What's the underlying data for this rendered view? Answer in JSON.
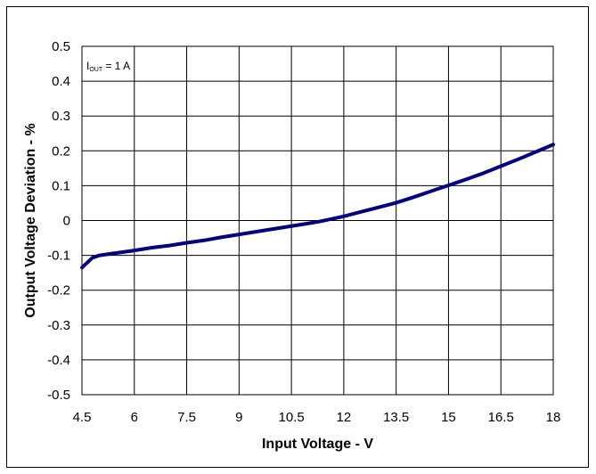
{
  "chart_data": {
    "type": "line",
    "title": "",
    "xlabel": "Input Voltage - V",
    "ylabel": "Output Voltage Deviation - %",
    "xlim": [
      4.5,
      18
    ],
    "ylim": [
      -0.5,
      0.5
    ],
    "x_ticks": [
      4.5,
      6,
      7.5,
      9,
      10.5,
      12,
      13.5,
      15,
      16.5,
      18
    ],
    "x_tick_labels": [
      "4.5",
      "6",
      "7.5",
      "9",
      "10.5",
      "12",
      "13.5",
      "15",
      "16.5",
      "18"
    ],
    "y_ticks": [
      0.5,
      0.4,
      0.3,
      0.2,
      0.1,
      0,
      -0.1,
      -0.2,
      -0.3,
      -0.4,
      -0.5
    ],
    "y_tick_labels": [
      "0.5",
      "0.4",
      "0.3",
      "0.2",
      "0.1",
      "0",
      "-0.1",
      "-0.2",
      "-0.3",
      "-0.4",
      "-0.5"
    ],
    "grid": true,
    "annotation": {
      "main": "I",
      "sub": "OUT",
      "rest": " = 1 A"
    },
    "series": [
      {
        "color": "#000080",
        "x": [
          4.5,
          4.8,
          5.0,
          5.5,
          6.0,
          6.5,
          7.0,
          7.5,
          8.0,
          8.5,
          9.0,
          9.5,
          10.0,
          10.5,
          11.0,
          11.3,
          12.0,
          12.5,
          13.0,
          13.5,
          14.0,
          14.5,
          15.0,
          15.5,
          16.0,
          16.5,
          17.0,
          17.5,
          18.0
        ],
        "y": [
          -0.135,
          -0.107,
          -0.1,
          -0.093,
          -0.086,
          -0.078,
          -0.072,
          -0.064,
          -0.057,
          -0.048,
          -0.04,
          -0.032,
          -0.024,
          -0.016,
          -0.008,
          -0.003,
          0.012,
          0.025,
          0.038,
          0.051,
          0.067,
          0.084,
          0.101,
          0.118,
          0.136,
          0.156,
          0.176,
          0.197,
          0.218
        ]
      }
    ]
  }
}
